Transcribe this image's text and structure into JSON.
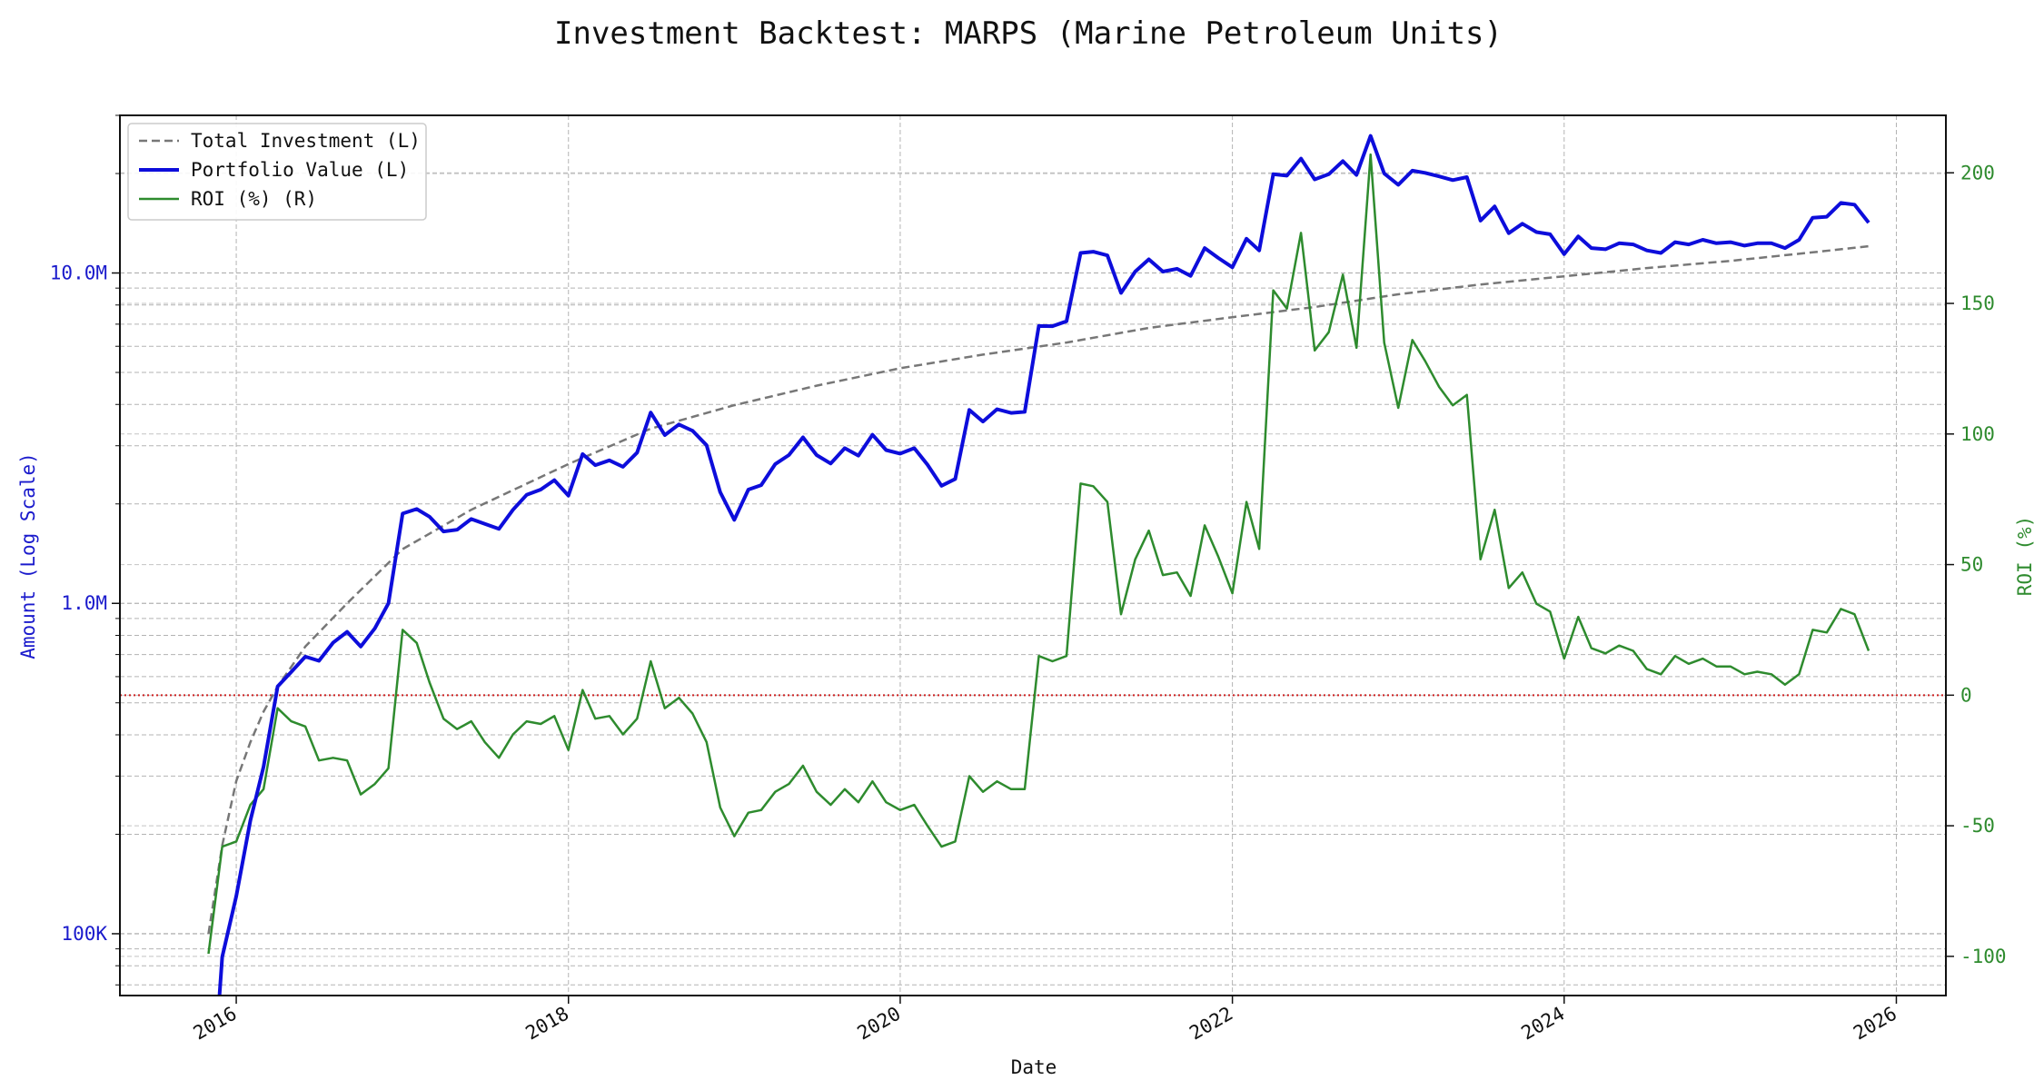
{
  "chart_data": {
    "type": "line",
    "title": "Investment Backtest: MARPS (Marine Petroleum Units)",
    "xlabel": "Date",
    "ylabel_left": "Amount (Log Scale)",
    "ylabel_right": "ROI (%)",
    "y_left_scale": "log",
    "y_left_range": [
      65000,
      30000000
    ],
    "y_right_range": [
      -115,
      222
    ],
    "x_range": [
      "2015-04-20",
      "2026-04-20"
    ],
    "x_ticks": [
      "2016",
      "2018",
      "2020",
      "2022",
      "2024",
      "2026"
    ],
    "y_left_ticks": [
      "100K",
      "1.0M",
      "10.0M"
    ],
    "y_right_ticks": [
      "-100",
      "-50",
      "0",
      "50",
      "100",
      "150",
      "200"
    ],
    "grid": true,
    "legend_position": "top-left",
    "colors": {
      "total_investment": "#777777",
      "portfolio_value": "#0d0ddb",
      "roi": "#2e8b2e",
      "zero_line": "#cc2222",
      "left_axis": "#1a1acc",
      "right_axis": "#2e8b2e"
    },
    "legend": [
      "Total Investment (L)",
      "Portfolio Value (L)",
      "ROI (%) (R)"
    ],
    "reference_line": {
      "axis": "right",
      "value": 0
    },
    "series": [
      {
        "name": "Total Investment (L)",
        "axis": "left",
        "style": "dashed",
        "x": [
          "2015-11-01",
          "2015-12-01",
          "2016-01-01",
          "2016-02-01",
          "2016-03-01",
          "2016-04-01",
          "2016-06-01",
          "2016-09-01",
          "2017-01-01",
          "2017-06-01",
          "2018-01-01",
          "2018-07-01",
          "2019-01-01",
          "2019-07-01",
          "2020-01-01",
          "2020-07-01",
          "2021-01-01",
          "2021-07-01",
          "2022-01-01",
          "2022-07-01",
          "2023-01-01",
          "2023-07-01",
          "2024-01-01",
          "2024-07-01",
          "2025-01-01",
          "2025-07-01",
          "2025-11-01"
        ],
        "values": [
          100000,
          185000,
          290000,
          380000,
          470000,
          560000,
          740000,
          1000000,
          1460000,
          1920000,
          2640000,
          3380000,
          3980000,
          4560000,
          5150000,
          5660000,
          6160000,
          6820000,
          7350000,
          7890000,
          8620000,
          9230000,
          9770000,
          10350000,
          10880000,
          11550000,
          12050000
        ]
      },
      {
        "name": "Portfolio Value (L)",
        "axis": "left",
        "style": "solid",
        "x": [
          "2015-11-25",
          "2015-12-01",
          "2016-01-01",
          "2016-02-01",
          "2016-03-01",
          "2016-04-01",
          "2016-05-01",
          "2016-06-01",
          "2016-07-01",
          "2016-08-01",
          "2016-09-01",
          "2016-10-01",
          "2016-11-01",
          "2016-12-01",
          "2017-01-01",
          "2017-02-01",
          "2017-03-01",
          "2017-04-01",
          "2017-05-01",
          "2017-06-01",
          "2017-07-01",
          "2017-08-01",
          "2017-09-01",
          "2017-10-01",
          "2017-11-01",
          "2017-12-01",
          "2018-01-01",
          "2018-02-01",
          "2018-03-01",
          "2018-04-01",
          "2018-05-01",
          "2018-06-01",
          "2018-07-01",
          "2018-08-01",
          "2018-09-01",
          "2018-10-01",
          "2018-11-01",
          "2018-12-01",
          "2019-01-01",
          "2019-02-01",
          "2019-03-01",
          "2019-04-01",
          "2019-05-01",
          "2019-06-01",
          "2019-07-01",
          "2019-08-01",
          "2019-09-01",
          "2019-10-01",
          "2019-11-01",
          "2019-12-01",
          "2020-01-01",
          "2020-02-01",
          "2020-03-01",
          "2020-04-01",
          "2020-05-01",
          "2020-06-01",
          "2020-07-01",
          "2020-08-01",
          "2020-09-01",
          "2020-10-01",
          "2020-11-01",
          "2020-12-01",
          "2021-01-01",
          "2021-02-01",
          "2021-03-01",
          "2021-04-01",
          "2021-05-01",
          "2021-06-01",
          "2021-07-01",
          "2021-08-01",
          "2021-09-01",
          "2021-10-01",
          "2021-11-01",
          "2021-12-01",
          "2022-01-01",
          "2022-02-01",
          "2022-03-01",
          "2022-04-01",
          "2022-05-01",
          "2022-06-01",
          "2022-07-01",
          "2022-08-01",
          "2022-09-01",
          "2022-10-01",
          "2022-11-01",
          "2022-12-01",
          "2023-01-01",
          "2023-02-01",
          "2023-03-01",
          "2023-04-01",
          "2023-05-01",
          "2023-06-01",
          "2023-07-01",
          "2023-08-01",
          "2023-09-01",
          "2023-10-01",
          "2023-11-01",
          "2023-12-01",
          "2024-01-01",
          "2024-02-01",
          "2024-03-01",
          "2024-04-01",
          "2024-05-01",
          "2024-06-01",
          "2024-07-01",
          "2024-08-01",
          "2024-09-01",
          "2024-10-01",
          "2024-11-01",
          "2024-12-01",
          "2025-01-01",
          "2025-02-01",
          "2025-03-01",
          "2025-04-01",
          "2025-05-01",
          "2025-06-01",
          "2025-07-01",
          "2025-08-01",
          "2025-09-01",
          "2025-10-01",
          "2025-11-01"
        ],
        "values": [
          60000,
          85000,
          130000,
          220000,
          320000,
          560000,
          620000,
          690000,
          670000,
          760000,
          820000,
          740000,
          840000,
          1000000,
          1870000,
          1930000,
          1830000,
          1650000,
          1670000,
          1800000,
          1740000,
          1680000,
          1920000,
          2130000,
          2210000,
          2360000,
          2120000,
          2830000,
          2620000,
          2710000,
          2590000,
          2860000,
          3780000,
          3230000,
          3480000,
          3330000,
          3010000,
          2170000,
          1790000,
          2210000,
          2280000,
          2640000,
          2810000,
          3180000,
          2810000,
          2650000,
          2950000,
          2800000,
          3240000,
          2910000,
          2840000,
          2950000,
          2630000,
          2270000,
          2380000,
          3850000,
          3550000,
          3870000,
          3770000,
          3800000,
          6910000,
          6900000,
          7140000,
          11500000,
          11600000,
          11300000,
          8700000,
          10100000,
          11000000,
          10100000,
          10300000,
          9800000,
          11900000,
          11100000,
          10400000,
          12700000,
          11700000,
          19900000,
          19700000,
          22200000,
          19200000,
          19900000,
          21800000,
          19800000,
          26000000,
          20000000,
          18500000,
          20400000,
          20100000,
          19600000,
          19100000,
          19500000,
          14400000,
          15900000,
          13200000,
          14100000,
          13300000,
          13100000,
          11400000,
          12900000,
          11900000,
          11800000,
          12300000,
          12200000,
          11700000,
          11500000,
          12400000,
          12200000,
          12600000,
          12300000,
          12400000,
          12100000,
          12300000,
          12300000,
          11900000,
          12600000,
          14700000,
          14800000,
          16300000,
          16100000,
          14200000
        ]
      },
      {
        "name": "ROI (%) (R)",
        "axis": "right",
        "style": "solid",
        "x": [
          "2015-11-01",
          "2015-12-01",
          "2016-01-01",
          "2016-02-01",
          "2016-03-01",
          "2016-04-01",
          "2016-05-01",
          "2016-06-01",
          "2016-07-01",
          "2016-08-01",
          "2016-09-01",
          "2016-10-01",
          "2016-11-01",
          "2016-12-01",
          "2017-01-01",
          "2017-02-01",
          "2017-03-01",
          "2017-04-01",
          "2017-05-01",
          "2017-06-01",
          "2017-07-01",
          "2017-08-01",
          "2017-09-01",
          "2017-10-01",
          "2017-11-01",
          "2017-12-01",
          "2018-01-01",
          "2018-02-01",
          "2018-03-01",
          "2018-04-01",
          "2018-05-01",
          "2018-06-01",
          "2018-07-01",
          "2018-08-01",
          "2018-09-01",
          "2018-10-01",
          "2018-11-01",
          "2018-12-01",
          "2019-01-01",
          "2019-02-01",
          "2019-03-01",
          "2019-04-01",
          "2019-05-01",
          "2019-06-01",
          "2019-07-01",
          "2019-08-01",
          "2019-09-01",
          "2019-10-01",
          "2019-11-01",
          "2019-12-01",
          "2020-01-01",
          "2020-02-01",
          "2020-03-01",
          "2020-04-01",
          "2020-05-01",
          "2020-06-01",
          "2020-07-01",
          "2020-08-01",
          "2020-09-01",
          "2020-10-01",
          "2020-11-01",
          "2020-12-01",
          "2021-01-01",
          "2021-02-01",
          "2021-03-01",
          "2021-04-01",
          "2021-05-01",
          "2021-06-01",
          "2021-07-01",
          "2021-08-01",
          "2021-09-01",
          "2021-10-01",
          "2021-11-01",
          "2021-12-01",
          "2022-01-01",
          "2022-02-01",
          "2022-03-01",
          "2022-04-01",
          "2022-05-01",
          "2022-06-01",
          "2022-07-01",
          "2022-08-01",
          "2022-09-01",
          "2022-10-01",
          "2022-11-01",
          "2022-12-01",
          "2023-01-01",
          "2023-02-01",
          "2023-03-01",
          "2023-04-01",
          "2023-05-01",
          "2023-06-01",
          "2023-07-01",
          "2023-08-01",
          "2023-09-01",
          "2023-10-01",
          "2023-11-01",
          "2023-12-01",
          "2024-01-01",
          "2024-02-01",
          "2024-03-01",
          "2024-04-01",
          "2024-05-01",
          "2024-06-01",
          "2024-07-01",
          "2024-08-01",
          "2024-09-01",
          "2024-10-01",
          "2024-11-01",
          "2024-12-01",
          "2025-01-01",
          "2025-02-01",
          "2025-03-01",
          "2025-04-01",
          "2025-05-01",
          "2025-06-01",
          "2025-07-01",
          "2025-08-01",
          "2025-09-01",
          "2025-10-01",
          "2025-11-01"
        ],
        "values": [
          -99,
          -58,
          -56,
          -42,
          -36,
          -5,
          -10,
          -12,
          -25,
          -24,
          -25,
          -38,
          -34,
          -28,
          25,
          20,
          5,
          -9,
          -13,
          -10,
          -18,
          -24,
          -15,
          -10,
          -11,
          -8,
          -21,
          2,
          -9,
          -8,
          -15,
          -9,
          13,
          -5,
          -1,
          -7,
          -18,
          -43,
          -54,
          -45,
          -44,
          -37,
          -34,
          -27,
          -37,
          -42,
          -36,
          -41,
          -33,
          -41,
          -44,
          -42,
          -50,
          -58,
          -56,
          -31,
          -37,
          -33,
          -36,
          -36,
          15,
          13,
          15,
          81,
          80,
          74,
          31,
          52,
          63,
          46,
          47,
          38,
          65,
          53,
          39,
          74,
          56,
          155,
          148,
          177,
          132,
          139,
          161,
          133,
          207,
          135,
          110,
          136,
          128,
          118,
          111,
          115,
          52,
          71,
          41,
          47,
          35,
          32,
          14,
          30,
          18,
          16,
          19,
          17,
          10,
          8,
          15,
          12,
          14,
          11,
          11,
          8,
          9,
          8,
          4,
          8,
          25,
          24,
          33,
          31,
          17
        ]
      }
    ]
  }
}
